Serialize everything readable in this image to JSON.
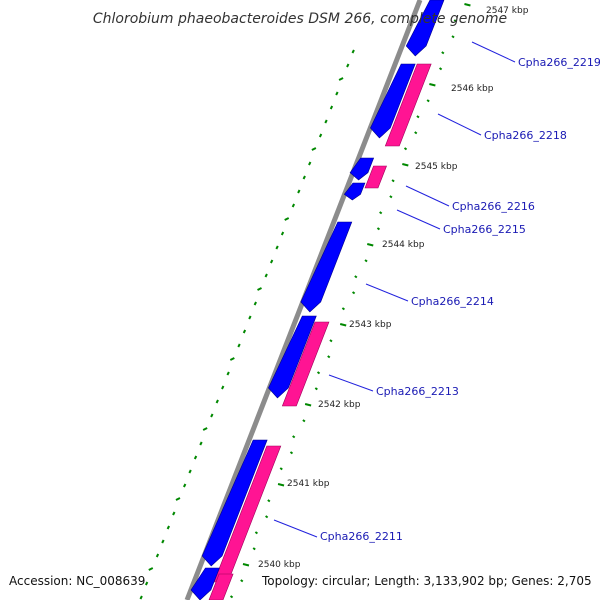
{
  "title": "Chlorobium phaeobacteroides DSM 266, complete genome",
  "footer": {
    "accession": "Accession: NC_008639",
    "summary": "Topology: circular; Length: 3,133,902 bp; Genes: 2,705"
  },
  "scale_labels": [
    "2547 kbp",
    "2546 kbp",
    "2545 kbp",
    "2544 kbp",
    "2543 kbp",
    "2542 kbp",
    "2541 kbp",
    "2540 kbp"
  ],
  "gene_labels": [
    "Cpha266_2219",
    "Cpha266_2218",
    "Cpha266_2216",
    "Cpha266_2215",
    "Cpha266_2214",
    "Cpha266_2213",
    "Cpha266_2211"
  ],
  "colors": {
    "backbone": "#8c8c8c",
    "gene_forward": "#0000ff",
    "gene_cds": "#ff1493",
    "tick": "#008800",
    "label_line": "#2222dd"
  }
}
